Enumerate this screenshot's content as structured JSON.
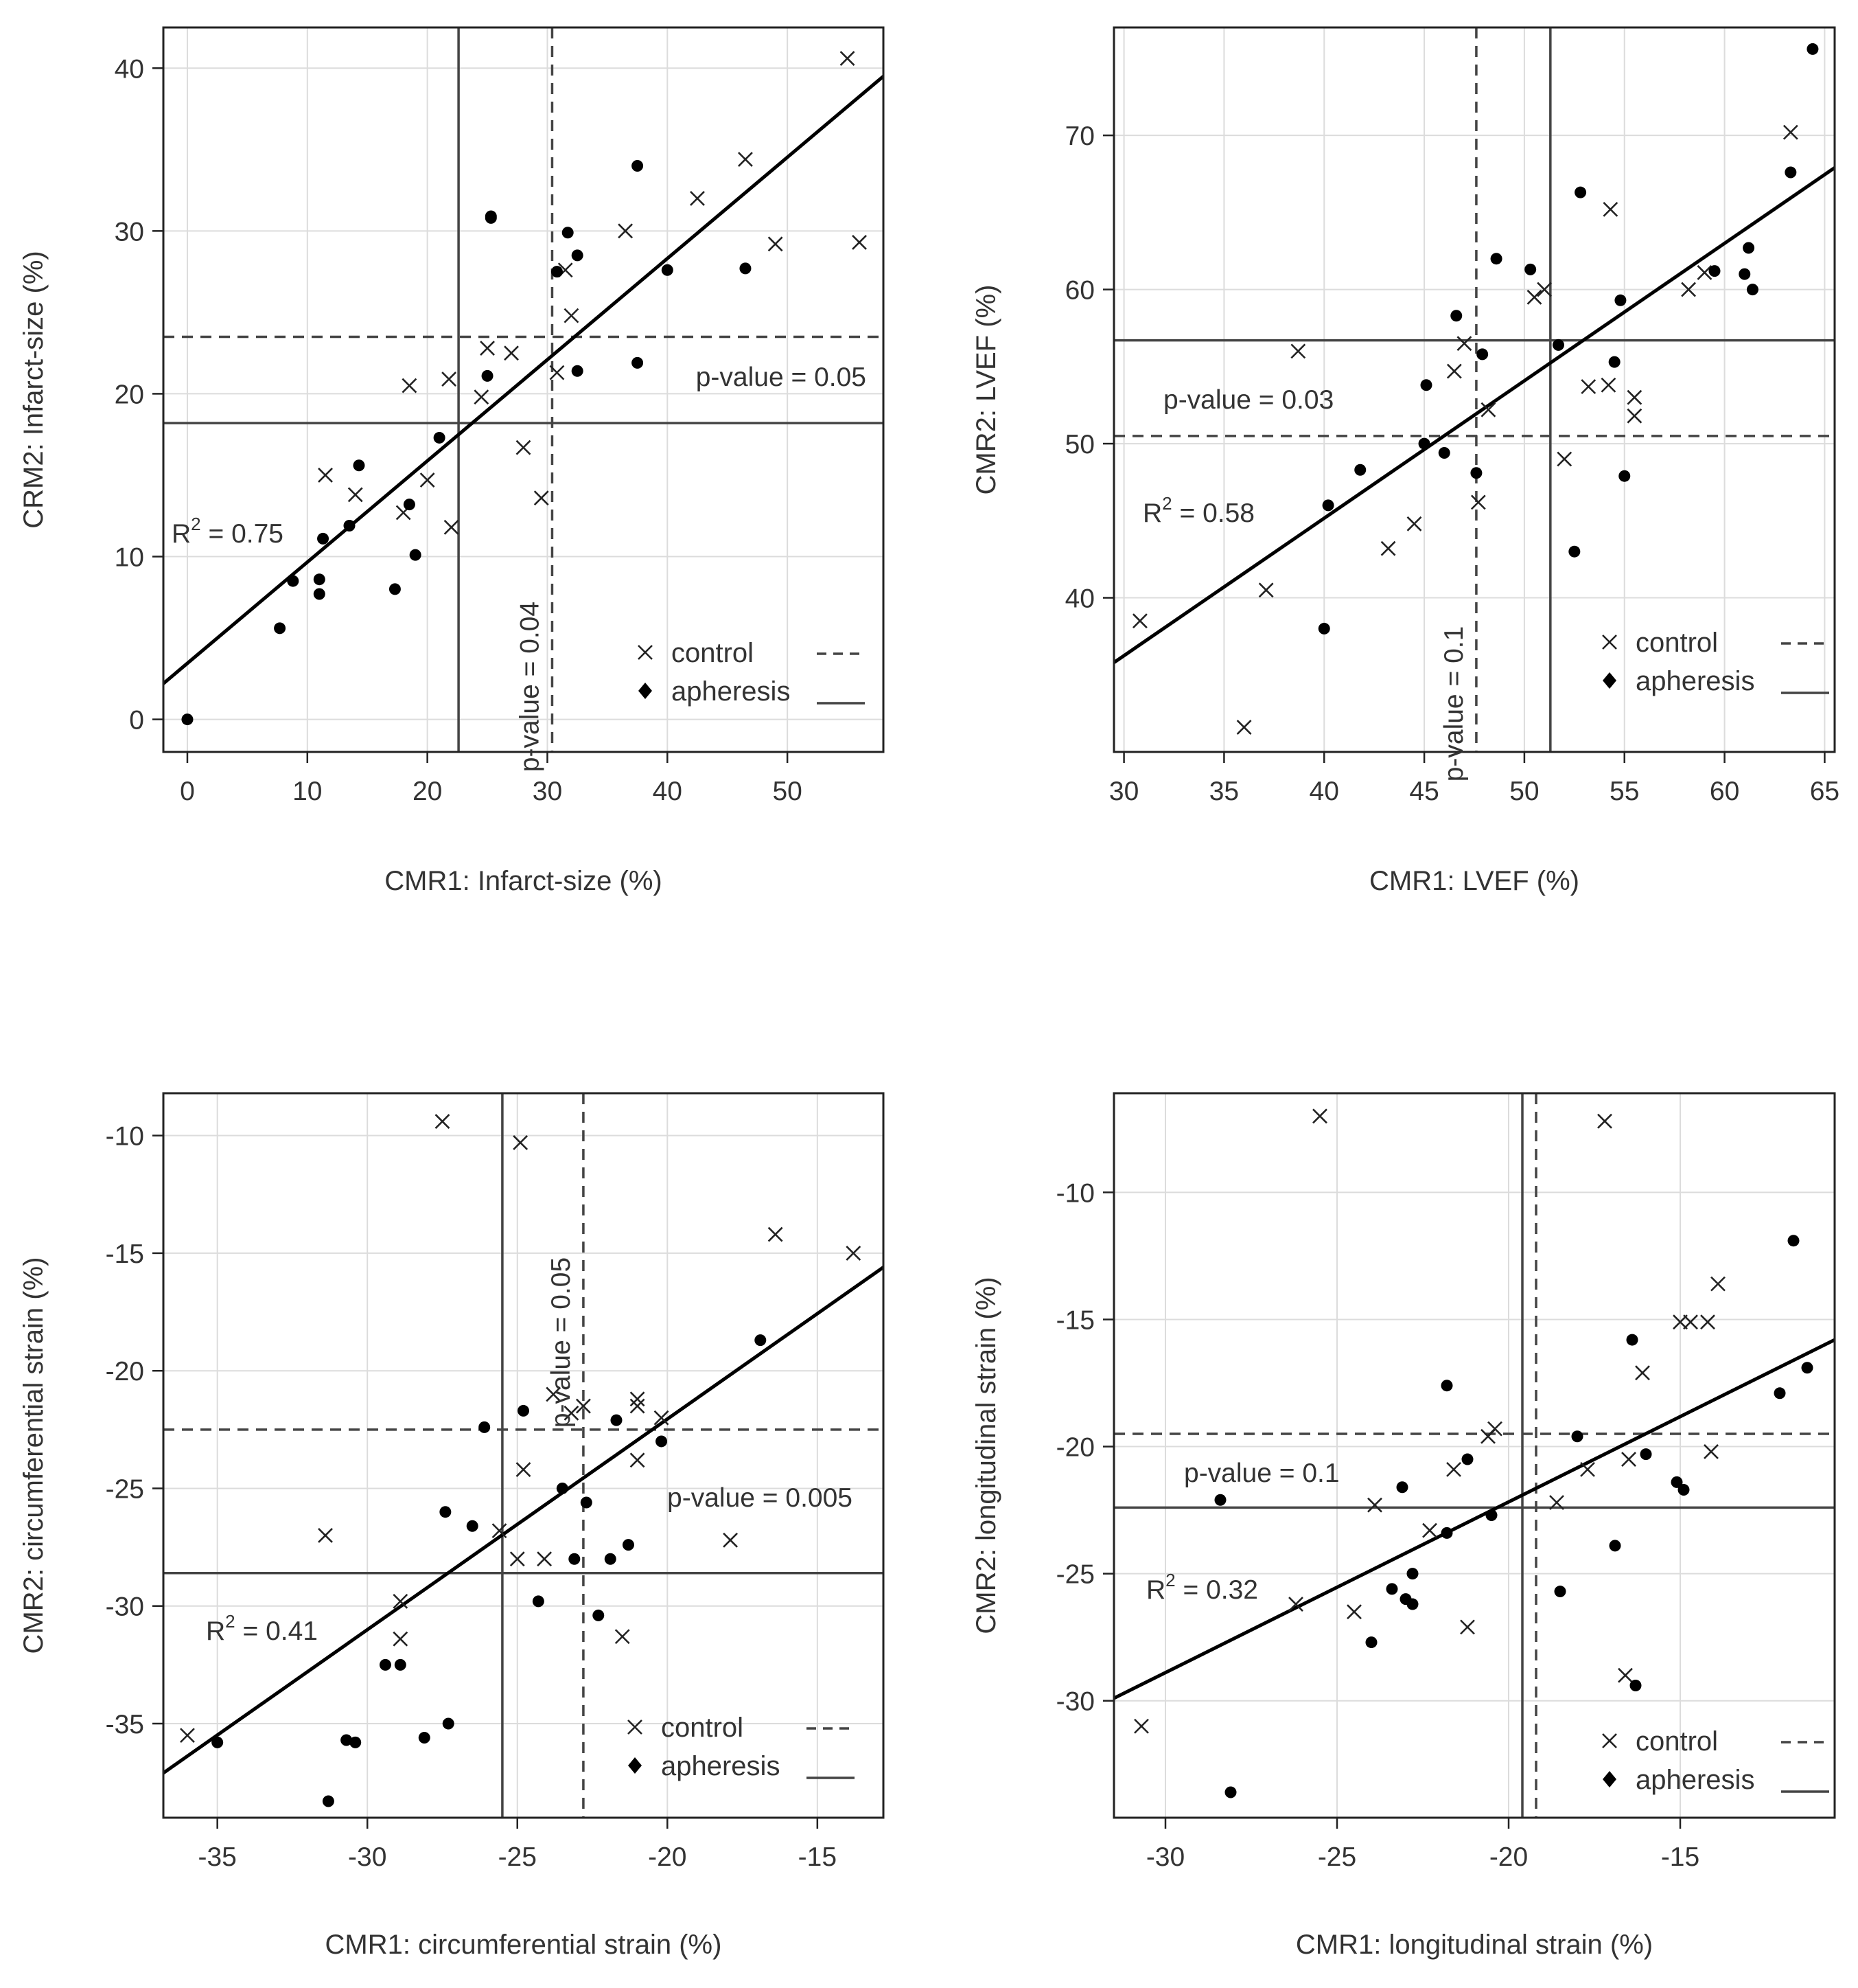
{
  "chart_data": [
    {
      "type": "scatter",
      "ylabel": "CRM2: Infarct-size (%)",
      "xlabel": "CMR1: Infarct-size (%)",
      "xlim": [
        -2,
        58
      ],
      "ylim": [
        -2,
        42.5
      ],
      "xticks": [
        0,
        10,
        20,
        30,
        40,
        50
      ],
      "yticks": [
        0,
        10,
        20,
        30,
        40
      ],
      "series": [
        {
          "name": "control",
          "marker": "x",
          "points": [
            [
              11.5,
              15
            ],
            [
              14,
              13.8
            ],
            [
              18,
              12.7
            ],
            [
              18.5,
              20.5
            ],
            [
              20,
              14.7
            ],
            [
              21.8,
              20.9
            ],
            [
              22,
              11.8
            ],
            [
              24.5,
              19.8
            ],
            [
              25,
              22.8
            ],
            [
              27,
              22.5
            ],
            [
              28,
              16.7
            ],
            [
              29.5,
              13.6
            ],
            [
              30.8,
              21.3
            ],
            [
              31.5,
              27.6
            ],
            [
              32,
              24.8
            ],
            [
              36.5,
              30
            ],
            [
              42.5,
              32
            ],
            [
              46.5,
              34.4
            ],
            [
              49,
              29.2
            ],
            [
              55,
              40.6
            ],
            [
              56,
              29.3
            ]
          ]
        },
        {
          "name": "apheresis",
          "marker": "dot",
          "points": [
            [
              0,
              0
            ],
            [
              7.7,
              5.6
            ],
            [
              8.8,
              8.5
            ],
            [
              11,
              8.6
            ],
            [
              11,
              7.7
            ],
            [
              11.3,
              11.1
            ],
            [
              13.5,
              11.9
            ],
            [
              14.3,
              15.6
            ],
            [
              17.3,
              8
            ],
            [
              18.5,
              13.2
            ],
            [
              19,
              10.1
            ],
            [
              21,
              17.3
            ],
            [
              25,
              21.1
            ],
            [
              25.3,
              30.8
            ],
            [
              25.3,
              30.9
            ],
            [
              30.8,
              27.5
            ],
            [
              31.7,
              29.9
            ],
            [
              32.5,
              28.5
            ],
            [
              32.5,
              21.4
            ],
            [
              37.5,
              34
            ],
            [
              37.5,
              21.9
            ],
            [
              40,
              27.6
            ],
            [
              46.5,
              27.7
            ]
          ]
        }
      ],
      "regression": [
        [
          -2,
          2.2
        ],
        [
          58,
          39.5
        ]
      ],
      "control_mean_x": 30.4,
      "control_mean_y": 23.5,
      "apheresis_mean_x": 22.6,
      "apheresis_mean_y": 18.2,
      "r2_text": "R",
      "r2_sup": "2",
      "r2_value": " = 0.75",
      "pvalue_x": "p-value = 0.04",
      "pvalue_y": "p-value = 0.05",
      "legend_control": "control",
      "legend_apheresis": "apheresis"
    },
    {
      "type": "scatter",
      "ylabel": "CMR2:  LVEF (%)",
      "xlabel": "CMR1:  LVEF (%)",
      "xlim": [
        29.5,
        65.5
      ],
      "ylim": [
        30,
        77
      ],
      "xticks": [
        30,
        35,
        40,
        45,
        50,
        55,
        60,
        65
      ],
      "yticks": [
        40,
        50,
        60,
        70
      ],
      "series": [
        {
          "name": "control",
          "marker": "x",
          "points": [
            [
              30.8,
              38.5
            ],
            [
              36,
              31.6
            ],
            [
              37.1,
              40.5
            ],
            [
              38.7,
              56
            ],
            [
              43.2,
              43.2
            ],
            [
              44.5,
              44.8
            ],
            [
              46.5,
              54.7
            ],
            [
              47,
              56.5
            ],
            [
              47.7,
              46.2
            ],
            [
              48.2,
              52.2
            ],
            [
              50.5,
              59.5
            ],
            [
              51,
              60
            ],
            [
              52,
              49
            ],
            [
              53.2,
              53.7
            ],
            [
              54.2,
              53.8
            ],
            [
              54.3,
              65.2
            ],
            [
              55.5,
              53
            ],
            [
              55.5,
              51.8
            ],
            [
              58.2,
              60
            ],
            [
              59,
              61.1
            ],
            [
              63.3,
              70.2
            ]
          ]
        },
        {
          "name": "apheresis",
          "marker": "dot",
          "points": [
            [
              40,
              38
            ],
            [
              40.2,
              46
            ],
            [
              41.8,
              48.3
            ],
            [
              45.1,
              53.8
            ],
            [
              45,
              50
            ],
            [
              46,
              49.4
            ],
            [
              46.6,
              58.3
            ],
            [
              47.6,
              48.1
            ],
            [
              47.9,
              55.8
            ],
            [
              48.6,
              62
            ],
            [
              50.3,
              61.3
            ],
            [
              51.7,
              56.4
            ],
            [
              52.5,
              43
            ],
            [
              52.8,
              66.3
            ],
            [
              54.5,
              55.3
            ],
            [
              54.8,
              59.3
            ],
            [
              55,
              47.9
            ],
            [
              59.5,
              61.2
            ],
            [
              61,
              61
            ],
            [
              61.2,
              62.7
            ],
            [
              61.4,
              60
            ],
            [
              63.3,
              67.6
            ],
            [
              64.4,
              75.6
            ]
          ]
        }
      ],
      "regression": [
        [
          29.5,
          35.8
        ],
        [
          65.5,
          67.9
        ]
      ],
      "control_mean_x": 47.6,
      "control_mean_y": 50.5,
      "apheresis_mean_x": 51.3,
      "apheresis_mean_y": 56.7,
      "r2_text": "R",
      "r2_sup": "2",
      "r2_value": " = 0.58",
      "pvalue_x": "p-value = 0.1",
      "pvalue_y": "p-value = 0.03",
      "legend_control": "control",
      "legend_apheresis": "apheresis"
    },
    {
      "type": "scatter",
      "ylabel": "CMR2:  circumferential strain (%)",
      "xlabel": "CMR1:  circumferential strain (%)",
      "xlim": [
        -36.8,
        -12.8
      ],
      "ylim": [
        -39,
        -8.2
      ],
      "xticks": [
        -35,
        -30,
        -25,
        -20,
        -15
      ],
      "yticks": [
        -35,
        -30,
        -25,
        -20,
        -15,
        -10
      ],
      "series": [
        {
          "name": "control",
          "marker": "x",
          "points": [
            [
              -36,
              -35.5
            ],
            [
              -31.4,
              -27
            ],
            [
              -28.9,
              -29.8
            ],
            [
              -28.9,
              -31.4
            ],
            [
              -27.5,
              -9.4
            ],
            [
              -25.6,
              -26.8
            ],
            [
              -25,
              -28
            ],
            [
              -24.9,
              -10.3
            ],
            [
              -24.8,
              -24.2
            ],
            [
              -24.1,
              -28
            ],
            [
              -23.8,
              -21
            ],
            [
              -23.2,
              -21.8
            ],
            [
              -22.8,
              -21.5
            ],
            [
              -21.5,
              -31.3
            ],
            [
              -21,
              -21.2
            ],
            [
              -21,
              -21.5
            ],
            [
              -21,
              -23.8
            ],
            [
              -20.2,
              -22
            ],
            [
              -17.9,
              -27.2
            ],
            [
              -16.4,
              -14.2
            ],
            [
              -13.8,
              -15
            ]
          ]
        },
        {
          "name": "apheresis",
          "marker": "dot",
          "points": [
            [
              -35,
              -35.8
            ],
            [
              -31.3,
              -38.3
            ],
            [
              -30.7,
              -35.7
            ],
            [
              -30.4,
              -35.8
            ],
            [
              -29.4,
              -32.5
            ],
            [
              -28.9,
              -32.5
            ],
            [
              -28.1,
              -35.6
            ],
            [
              -27.4,
              -26
            ],
            [
              -27.3,
              -35
            ],
            [
              -26.5,
              -26.6
            ],
            [
              -26.1,
              -22.4
            ],
            [
              -24.8,
              -21.7
            ],
            [
              -24.3,
              -29.8
            ],
            [
              -23.5,
              -25
            ],
            [
              -23.1,
              -28
            ],
            [
              -22.7,
              -25.6
            ],
            [
              -22.3,
              -30.4
            ],
            [
              -21.9,
              -28
            ],
            [
              -21.7,
              -22.1
            ],
            [
              -21.3,
              -27.4
            ],
            [
              -20.2,
              -23
            ],
            [
              -16.9,
              -18.7
            ]
          ]
        }
      ],
      "regression": [
        [
          -36.8,
          -37.1
        ],
        [
          -12.8,
          -15.6
        ]
      ],
      "control_mean_x": -22.8,
      "control_mean_y": -22.5,
      "apheresis_mean_x": -25.5,
      "apheresis_mean_y": -28.6,
      "r2_text": "R",
      "r2_sup": "2",
      "r2_value": " = 0.41",
      "pvalue_x": "p-value = 0.05",
      "pvalue_y": "p-value = 0.005",
      "legend_control": "control",
      "legend_apheresis": "apheresis"
    },
    {
      "type": "scatter",
      "ylabel": "CMR2:  longitudinal strain (%)",
      "xlabel": "CMR1: longitudinal strain (%)",
      "xlim": [
        -31.5,
        -10.5
      ],
      "ylim": [
        -34.6,
        -6.1
      ],
      "xticks": [
        -30,
        -25,
        -20,
        -15
      ],
      "yticks": [
        -30,
        -25,
        -20,
        -15,
        -10
      ],
      "series": [
        {
          "name": "control",
          "marker": "x",
          "points": [
            [
              -30.7,
              -31
            ],
            [
              -26.2,
              -26.2
            ],
            [
              -25.5,
              -7
            ],
            [
              -24.5,
              -26.5
            ],
            [
              -23.9,
              -22.3
            ],
            [
              -22.3,
              -23.3
            ],
            [
              -21.6,
              -20.9
            ],
            [
              -21.2,
              -27.1
            ],
            [
              -20.6,
              -19.6
            ],
            [
              -20.4,
              -19.3
            ],
            [
              -18.6,
              -22.2
            ],
            [
              -17.7,
              -20.9
            ],
            [
              -17.2,
              -7.2
            ],
            [
              -16.5,
              -20.5
            ],
            [
              -16.6,
              -29
            ],
            [
              -16.1,
              -17.1
            ],
            [
              -15,
              -15.1
            ],
            [
              -14.7,
              -15.1
            ],
            [
              -14.2,
              -15.1
            ],
            [
              -14.1,
              -20.2
            ],
            [
              -13.9,
              -13.6
            ]
          ]
        },
        {
          "name": "apheresis",
          "marker": "dot",
          "points": [
            [
              -28.4,
              -22.1
            ],
            [
              -28.1,
              -33.6
            ],
            [
              -24,
              -27.7
            ],
            [
              -23.4,
              -25.6
            ],
            [
              -23.1,
              -21.6
            ],
            [
              -23,
              -26
            ],
            [
              -22.8,
              -25
            ],
            [
              -22.8,
              -26.2
            ],
            [
              -21.8,
              -23.4
            ],
            [
              -21.8,
              -17.6
            ],
            [
              -21.2,
              -20.5
            ],
            [
              -20.5,
              -22.7
            ],
            [
              -18.5,
              -25.7
            ],
            [
              -18,
              -19.6
            ],
            [
              -16.9,
              -23.9
            ],
            [
              -16.4,
              -15.8
            ],
            [
              -16,
              -20.3
            ],
            [
              -16.3,
              -29.4
            ],
            [
              -15.1,
              -21.4
            ],
            [
              -14.9,
              -21.7
            ],
            [
              -12.1,
              -17.9
            ],
            [
              -11.7,
              -11.9
            ],
            [
              -11.3,
              -16.9
            ]
          ]
        }
      ],
      "regression": [
        [
          -31.5,
          -29.9
        ],
        [
          -10.5,
          -15.8
        ]
      ],
      "control_mean_x": -19.2,
      "control_mean_y": -19.5,
      "apheresis_mean_x": -19.6,
      "apheresis_mean_y": -22.4,
      "r2_text": "R",
      "r2_sup": "2",
      "r2_value": " = 0.32",
      "pvalue_x": "p-value = 0.1",
      "pvalue_y": "p-value = 0.1",
      "legend_control": "control",
      "legend_apheresis": "apheresis"
    }
  ]
}
